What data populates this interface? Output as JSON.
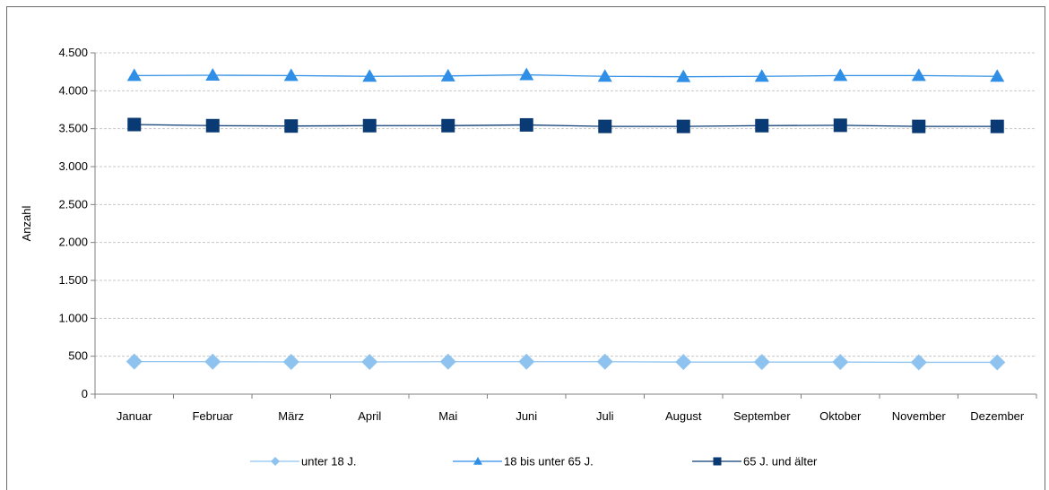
{
  "chart_data": {
    "type": "line",
    "title": "",
    "xlabel": "",
    "ylabel": "Anzahl",
    "ylim": [
      0,
      4500
    ],
    "yticks": [
      0,
      500,
      1000,
      1500,
      2000,
      2500,
      3000,
      3500,
      4000,
      4500
    ],
    "ytick_labels": [
      "0",
      "500",
      "1.000",
      "1.500",
      "2.000",
      "2.500",
      "3.000",
      "3.500",
      "4.000",
      "4.500"
    ],
    "grid": true,
    "legend_position": "bottom",
    "categories": [
      "Januar",
      "Februar",
      "März",
      "April",
      "Mai",
      "Juni",
      "Juli",
      "August",
      "September",
      "Oktober",
      "November",
      "Dezember"
    ],
    "series": [
      {
        "name": "unter 18 J.",
        "marker": "diamond",
        "color": "#8ec3f0",
        "values": [
          430,
          428,
          425,
          425,
          428,
          428,
          428,
          423,
          423,
          423,
          420,
          420
        ]
      },
      {
        "name": "18 bis unter 65 J.",
        "marker": "triangle",
        "color": "#2f8fe6",
        "values": [
          4200,
          4205,
          4200,
          4190,
          4195,
          4210,
          4190,
          4185,
          4190,
          4200,
          4200,
          4190
        ]
      },
      {
        "name": "65 J. und älter",
        "marker": "square",
        "color": "#0a3a73",
        "values": [
          3555,
          3540,
          3535,
          3540,
          3540,
          3550,
          3530,
          3530,
          3540,
          3545,
          3530,
          3530
        ]
      }
    ]
  }
}
